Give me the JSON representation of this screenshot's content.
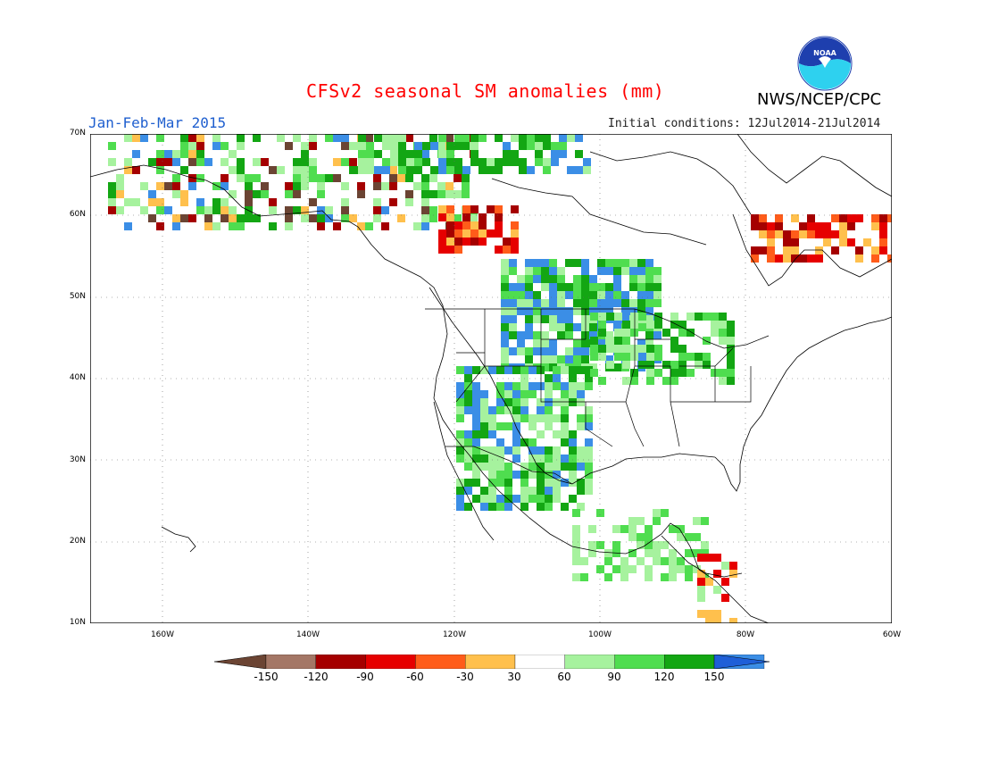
{
  "title": "CFSv2 seasonal SM anomalies (mm)",
  "period": "Jan-Feb-Mar 2015",
  "initial_conditions": "Initial conditions: 12Jul2014-21Jul2014",
  "agency": "NWS/NCEP/CPC",
  "logo_text": "NOAA",
  "latitude_labels": [
    "70N",
    "60N",
    "50N",
    "40N",
    "30N",
    "20N",
    "10N"
  ],
  "longitude_labels": [
    "160W",
    "140W",
    "120W",
    "100W",
    "80W",
    "60W"
  ],
  "legend": {
    "ticks": [
      "-150",
      "-120",
      "-90",
      "-60",
      "-30",
      "30",
      "60",
      "90",
      "120",
      "150"
    ],
    "colors": [
      "#6b4433",
      "#a47766",
      "#a50000",
      "#e60000",
      "#ff5c1a",
      "#ffc04d",
      "#ffffff",
      "#a6f29e",
      "#4fdd4f",
      "#13a613",
      "#3b8ee6",
      "#1e5fd8"
    ]
  },
  "map_extent": {
    "lon_min": -170,
    "lon_max": -60,
    "lat_min": 10,
    "lat_max": 70
  }
}
